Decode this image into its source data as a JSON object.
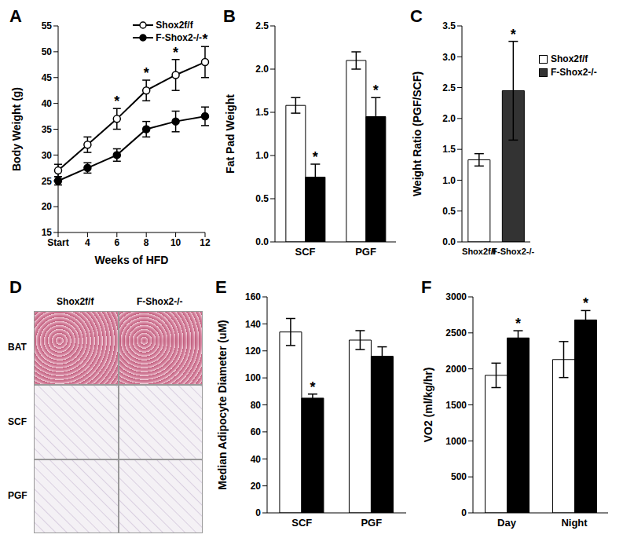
{
  "chart_data": [
    {
      "type": "line",
      "title": "A",
      "xlabel": "Weeks of HFD",
      "ylabel": "Body Weight (g)",
      "categories": [
        "Start",
        "4",
        "6",
        "8",
        "10",
        "12"
      ],
      "series": [
        {
          "name": "Shox2f/f",
          "color": "#000000",
          "marker": "open_circle",
          "values": [
            27,
            32,
            37,
            42.5,
            45.5,
            48
          ],
          "errors": [
            1.2,
            1.5,
            2,
            2,
            3,
            3
          ],
          "annotations": [
            null,
            null,
            "*",
            "*",
            "*",
            "*"
          ]
        },
        {
          "name": "F-Shox2-/-",
          "color": "#000000",
          "marker": "circle",
          "values": [
            25,
            27.5,
            30,
            35,
            36.5,
            37.5
          ],
          "errors": [
            0.8,
            1,
            1.2,
            1.5,
            2,
            1.8
          ]
        }
      ],
      "ylim": [
        15,
        55
      ],
      "yticks": [
        15,
        20,
        25,
        30,
        35,
        40,
        45,
        50,
        55
      ],
      "legend": "upper right"
    },
    {
      "type": "bar",
      "title": "B",
      "ylabel": "Fat Pad Weight",
      "categories": [
        "SCF",
        "PGF"
      ],
      "series": [
        {
          "name": "Shox2f/f",
          "color": "#ffffff",
          "values": [
            1.58,
            2.1
          ],
          "errors": [
            0.09,
            0.1
          ]
        },
        {
          "name": "F-Shox2-/-",
          "color": "#000000",
          "values": [
            0.75,
            1.45
          ],
          "errors": [
            0.15,
            0.22
          ],
          "annotations": [
            "*",
            "*"
          ]
        }
      ],
      "ylim": [
        0,
        2.5
      ],
      "yticks": [
        {
          "value": 0,
          "label": "0.0"
        },
        0.5,
        {
          "value": 1,
          "label": "1.0"
        },
        1.5,
        {
          "value": 2,
          "label": "2.0"
        },
        2.5
      ]
    },
    {
      "type": "bar",
      "title": "C",
      "ylabel": "Weight Ratio (PGF/SCF)",
      "categories": [
        "Shox2f/f",
        "F-Shox2-/-"
      ],
      "values": [
        1.33,
        2.45
      ],
      "errors": [
        0.1,
        0.8
      ],
      "annotations": [
        null,
        "*"
      ],
      "colors": [
        "#ffffff",
        "#333333"
      ],
      "ylim": [
        0,
        3.5
      ],
      "yticks": [
        {
          "value": 0,
          "label": "0.0"
        },
        0.5,
        {
          "value": 1,
          "label": "1.0"
        },
        1.5,
        {
          "value": 2,
          "label": "2.0"
        },
        2.5,
        {
          "value": 3,
          "label": "3.0"
        },
        3.5
      ],
      "legend": "right"
    },
    {
      "type": "image_grid",
      "title": "D",
      "columns": [
        "Shox2f/f",
        "F-Shox2-/-"
      ],
      "rows": [
        "BAT",
        "SCF",
        "PGF"
      ]
    },
    {
      "type": "bar",
      "title": "E",
      "ylabel": "Median Adipocyte Diameter (uM)",
      "categories": [
        "SCF",
        "PGF"
      ],
      "series": [
        {
          "name": "Shox2f/f",
          "color": "#ffffff",
          "values": [
            134,
            128
          ],
          "errors": [
            10,
            7
          ]
        },
        {
          "name": "F-Shox2-/-",
          "color": "#000000",
          "values": [
            85,
            116
          ],
          "errors": [
            3,
            7
          ],
          "annotations": [
            "*",
            null
          ]
        }
      ],
      "ylim": [
        0,
        160
      ],
      "yticks": [
        0,
        20,
        40,
        60,
        80,
        100,
        120,
        140,
        160
      ]
    },
    {
      "type": "bar",
      "title": "F",
      "ylabel": "VO2 (ml/kg/hr)",
      "categories": [
        "Day",
        "Night"
      ],
      "series": [
        {
          "name": "Shox2f/f",
          "color": "#ffffff",
          "values": [
            1910,
            2130
          ],
          "errors": [
            170,
            250
          ]
        },
        {
          "name": "F-Shox2-/-",
          "color": "#000000",
          "values": [
            2430,
            2680
          ],
          "errors": [
            100,
            130
          ],
          "annotations": [
            "*",
            "*"
          ]
        }
      ],
      "ylim": [
        0,
        3000
      ],
      "yticks": [
        0,
        500,
        1000,
        1500,
        2000,
        2500,
        3000
      ]
    }
  ]
}
